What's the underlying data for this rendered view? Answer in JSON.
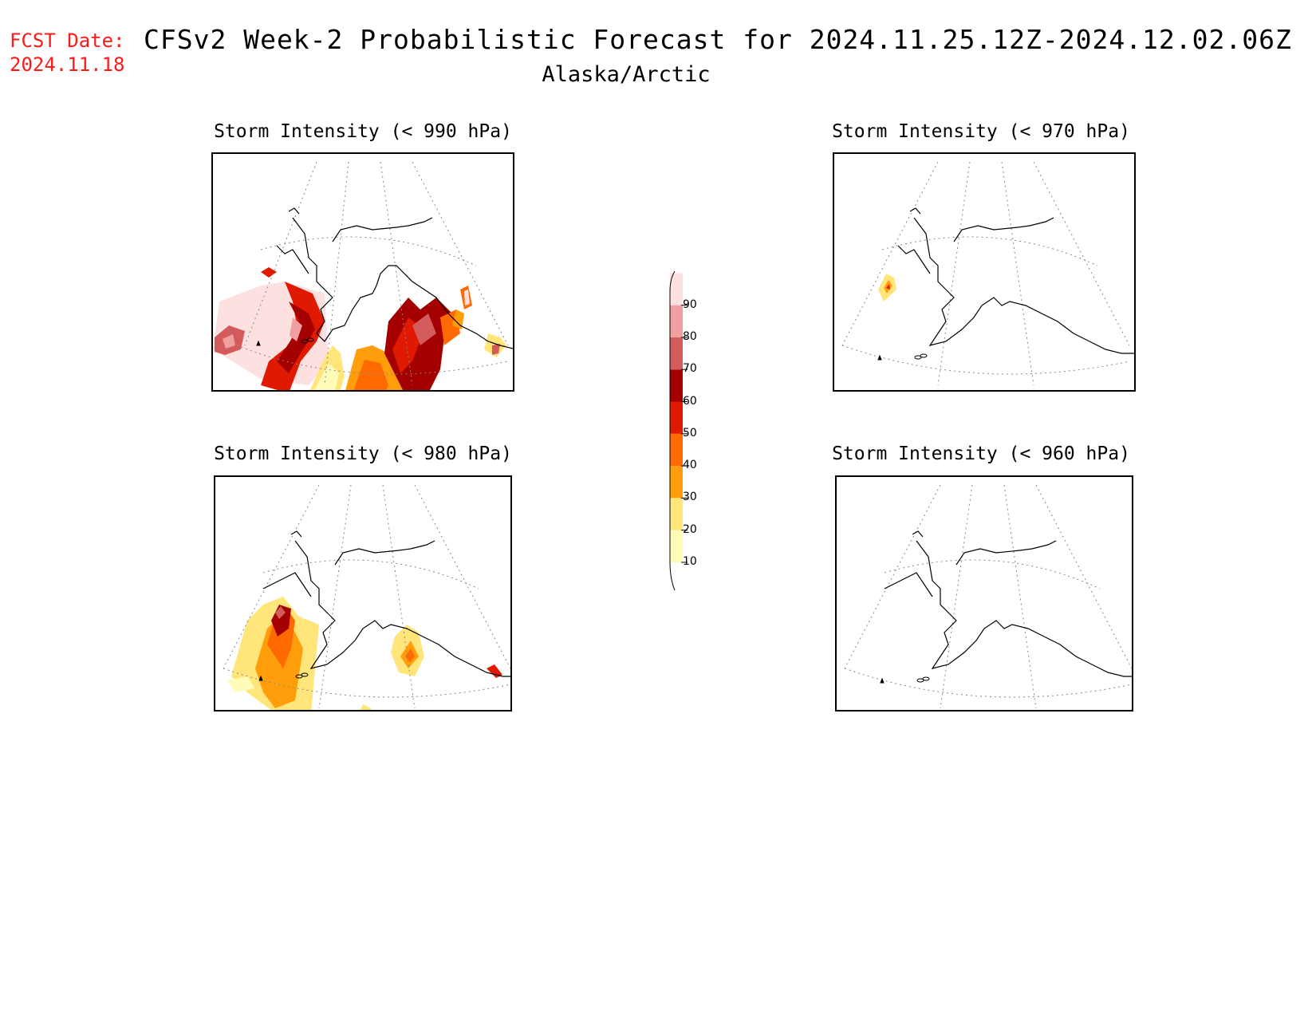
{
  "fcst_label": "FCST Date:",
  "fcst_date": "2024.11.18",
  "title": "CFSv2 Week-2 Probabilistic Forecast for 2024.11.25.12Z-2024.12.02.06Z",
  "subtitle": "Alaska/Arctic",
  "panels": [
    {
      "id": "p990",
      "title": "Storm Intensity (< 990 hPa)"
    },
    {
      "id": "p970",
      "title": "Storm Intensity (< 970 hPa)"
    },
    {
      "id": "p980",
      "title": "Storm Intensity (< 980 hPa)"
    },
    {
      "id": "p960",
      "title": "Storm Intensity (< 960 hPa)"
    }
  ],
  "colorbar": {
    "levels": [
      "10",
      "20",
      "30",
      "40",
      "50",
      "60",
      "70",
      "80",
      "90"
    ],
    "colors": {
      "c10": "#fffcb9",
      "c20": "#ffe57a",
      "c30": "#ff9e0a",
      "c40": "#ff6a00",
      "c50": "#e01a00",
      "c60": "#a50000",
      "c70": "#d45b5b",
      "c80": "#f0a0a0",
      "c90": "#fde0e0"
    }
  },
  "fcst_color": "#ff1a1a"
}
